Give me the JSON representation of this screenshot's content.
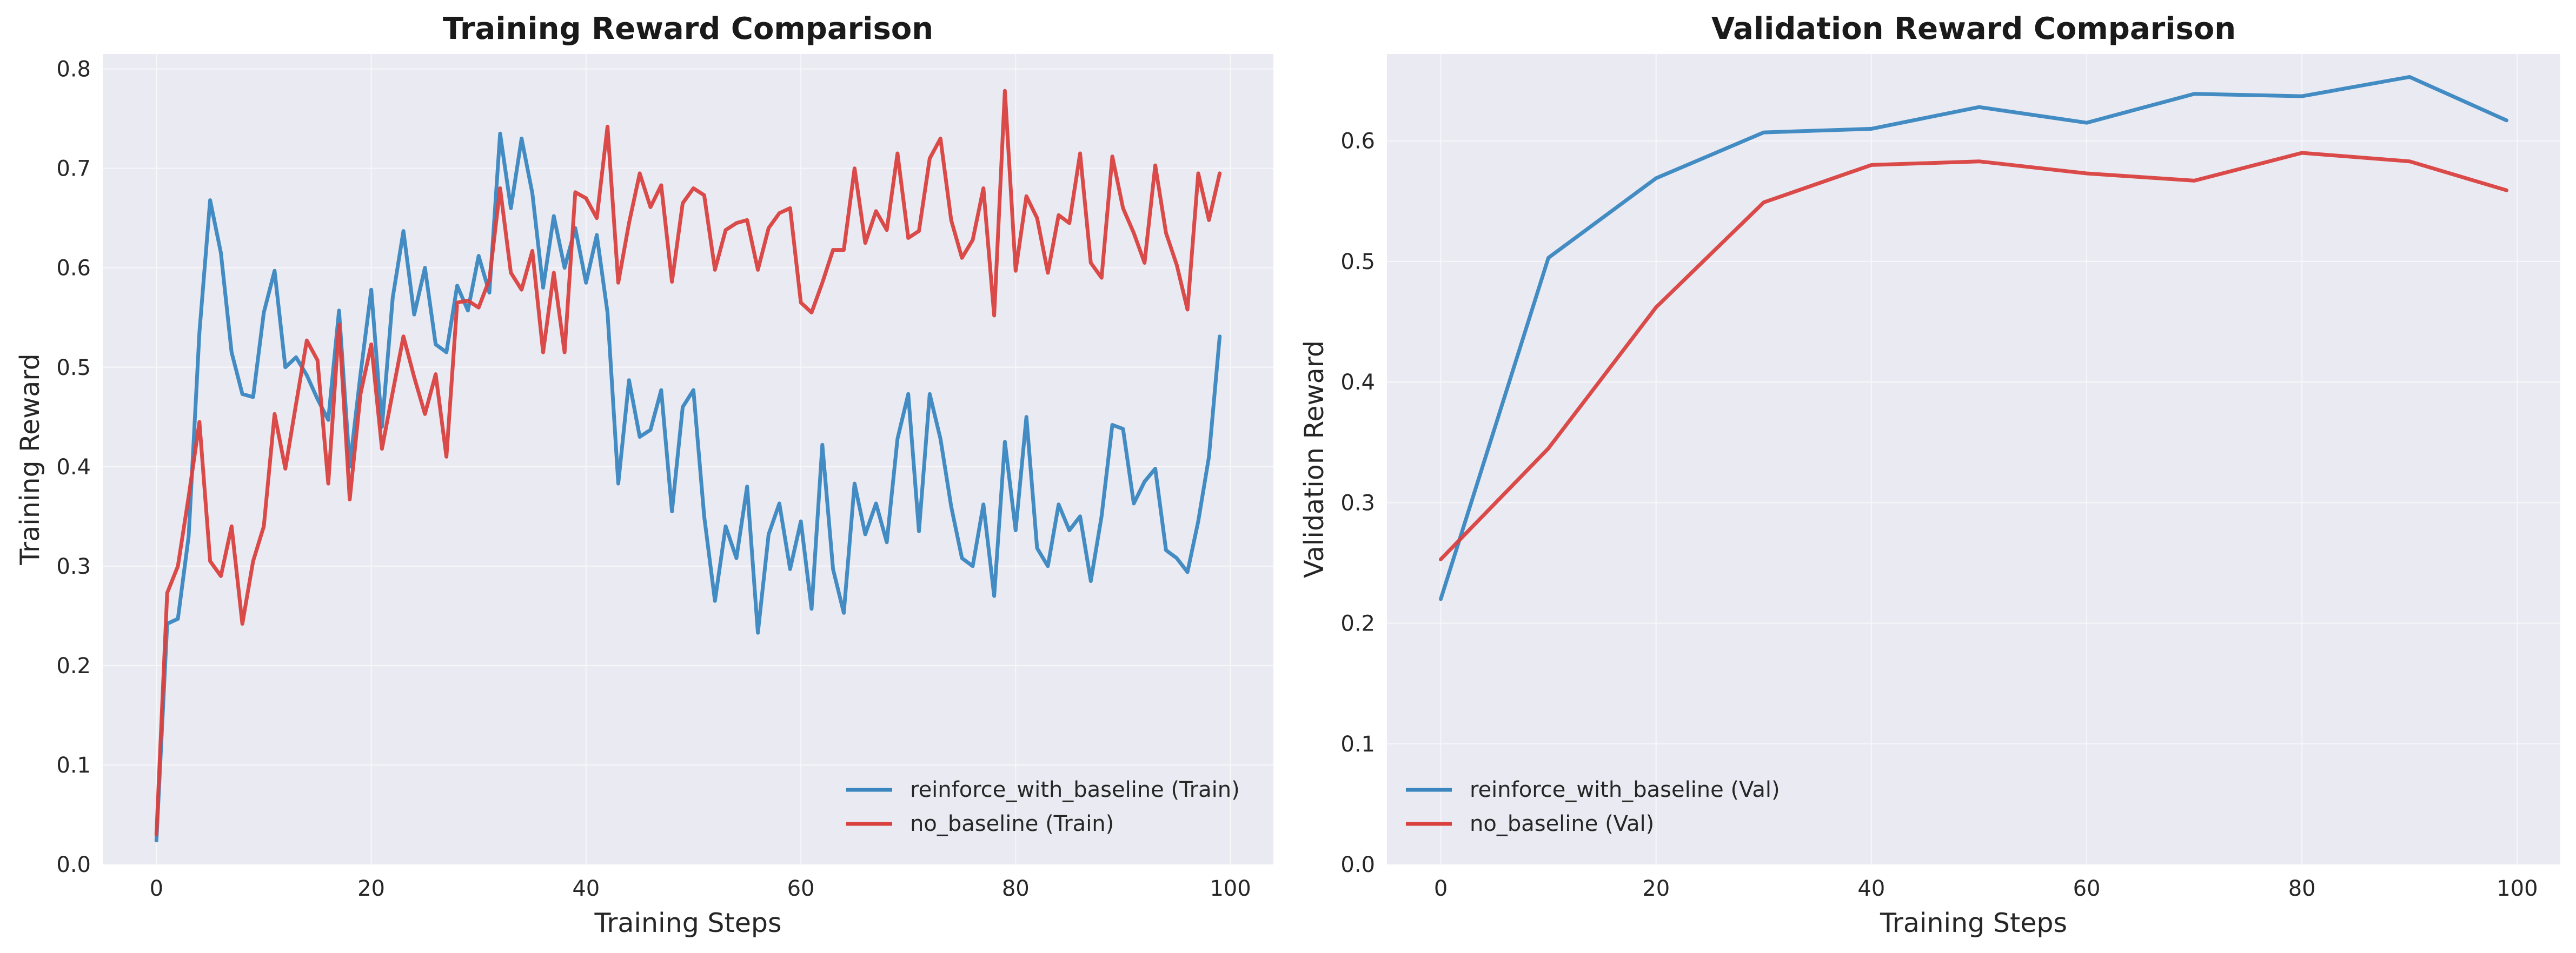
{
  "chart_data": [
    {
      "type": "line",
      "title": "Training Reward Comparison",
      "xlabel": "Training Steps",
      "ylabel": "Training Reward",
      "xlim": [
        -5,
        104
      ],
      "ylim": [
        0,
        0.815
      ],
      "xticks": [
        0,
        20,
        40,
        60,
        80,
        100
      ],
      "yticks": [
        0.0,
        0.1,
        0.2,
        0.3,
        0.4,
        0.5,
        0.6,
        0.7,
        0.8
      ],
      "grid": true,
      "legend_position": "lower-right",
      "series": [
        {
          "name": "reinforce_with_baseline (Train)",
          "color": "#3a87c0",
          "x": [
            0,
            1,
            2,
            3,
            4,
            5,
            6,
            7,
            8,
            9,
            10,
            11,
            12,
            13,
            14,
            15,
            16,
            17,
            18,
            19,
            20,
            21,
            22,
            23,
            24,
            25,
            26,
            27,
            28,
            29,
            30,
            31,
            32,
            33,
            34,
            35,
            36,
            37,
            38,
            39,
            40,
            41,
            42,
            43,
            44,
            45,
            46,
            47,
            48,
            49,
            50,
            51,
            52,
            53,
            54,
            55,
            56,
            57,
            58,
            59,
            60,
            61,
            62,
            63,
            64,
            65,
            66,
            67,
            68,
            69,
            70,
            71,
            72,
            73,
            74,
            75,
            76,
            77,
            78,
            79,
            80,
            81,
            82,
            83,
            84,
            85,
            86,
            87,
            88,
            89,
            90,
            91,
            92,
            93,
            94,
            95,
            96,
            97,
            98,
            99
          ],
          "y": [
            0.024,
            0.242,
            0.247,
            0.33,
            0.535,
            0.668,
            0.615,
            0.515,
            0.473,
            0.47,
            0.555,
            0.597,
            0.5,
            0.51,
            0.492,
            0.468,
            0.447,
            0.557,
            0.4,
            0.493,
            0.578,
            0.44,
            0.57,
            0.637,
            0.553,
            0.6,
            0.523,
            0.515,
            0.582,
            0.557,
            0.612,
            0.575,
            0.735,
            0.66,
            0.73,
            0.675,
            0.58,
            0.652,
            0.6,
            0.64,
            0.585,
            0.633,
            0.555,
            0.383,
            0.487,
            0.43,
            0.437,
            0.477,
            0.355,
            0.46,
            0.477,
            0.35,
            0.265,
            0.34,
            0.308,
            0.38,
            0.233,
            0.332,
            0.363,
            0.297,
            0.345,
            0.257,
            0.422,
            0.297,
            0.253,
            0.383,
            0.332,
            0.363,
            0.324,
            0.428,
            0.473,
            0.335,
            0.473,
            0.428,
            0.36,
            0.308,
            0.3,
            0.362,
            0.27,
            0.425,
            0.336,
            0.45,
            0.318,
            0.3,
            0.362,
            0.336,
            0.35,
            0.285,
            0.35,
            0.442,
            0.438,
            0.363,
            0.385,
            0.398,
            0.316,
            0.308,
            0.294,
            0.345,
            0.41,
            0.531
          ]
        },
        {
          "name": "no_baseline (Train)",
          "color": "#d9413f",
          "x": [
            0,
            1,
            2,
            3,
            4,
            5,
            6,
            7,
            8,
            9,
            10,
            11,
            12,
            13,
            14,
            15,
            16,
            17,
            18,
            19,
            20,
            21,
            22,
            23,
            24,
            25,
            26,
            27,
            28,
            29,
            30,
            31,
            32,
            33,
            34,
            35,
            36,
            37,
            38,
            39,
            40,
            41,
            42,
            43,
            44,
            45,
            46,
            47,
            48,
            49,
            50,
            51,
            52,
            53,
            54,
            55,
            56,
            57,
            58,
            59,
            60,
            61,
            62,
            63,
            64,
            65,
            66,
            67,
            68,
            69,
            70,
            71,
            72,
            73,
            74,
            75,
            76,
            77,
            78,
            79,
            80,
            81,
            82,
            83,
            84,
            85,
            86,
            87,
            88,
            89,
            90,
            91,
            92,
            93,
            94,
            95,
            96,
            97,
            98,
            99
          ],
          "y": [
            0.03,
            0.273,
            0.3,
            0.37,
            0.445,
            0.305,
            0.29,
            0.34,
            0.242,
            0.305,
            0.34,
            0.453,
            0.398,
            0.463,
            0.527,
            0.507,
            0.383,
            0.543,
            0.367,
            0.473,
            0.523,
            0.418,
            0.475,
            0.531,
            0.49,
            0.453,
            0.493,
            0.41,
            0.565,
            0.567,
            0.56,
            0.588,
            0.68,
            0.595,
            0.578,
            0.617,
            0.515,
            0.595,
            0.515,
            0.676,
            0.67,
            0.65,
            0.742,
            0.585,
            0.645,
            0.695,
            0.661,
            0.683,
            0.586,
            0.665,
            0.68,
            0.673,
            0.598,
            0.638,
            0.645,
            0.648,
            0.598,
            0.64,
            0.655,
            0.66,
            0.565,
            0.555,
            0.585,
            0.618,
            0.618,
            0.7,
            0.625,
            0.657,
            0.638,
            0.715,
            0.63,
            0.637,
            0.71,
            0.73,
            0.648,
            0.61,
            0.628,
            0.68,
            0.552,
            0.778,
            0.597,
            0.672,
            0.65,
            0.595,
            0.653,
            0.645,
            0.715,
            0.605,
            0.59,
            0.712,
            0.66,
            0.635,
            0.605,
            0.703,
            0.635,
            0.603,
            0.558,
            0.695,
            0.648,
            0.695
          ]
        }
      ]
    },
    {
      "type": "line",
      "title": "Validation Reward Comparison",
      "xlabel": "Training Steps",
      "ylabel": "Validation Reward",
      "xlim": [
        -5,
        104
      ],
      "ylim": [
        0,
        0.672
      ],
      "xticks": [
        0,
        20,
        40,
        60,
        80,
        100
      ],
      "yticks": [
        0.0,
        0.1,
        0.2,
        0.3,
        0.4,
        0.5,
        0.6
      ],
      "grid": true,
      "legend_position": "lower-left",
      "series": [
        {
          "name": "reinforce_with_baseline (Val)",
          "color": "#3a87c0",
          "x": [
            0,
            10,
            20,
            30,
            40,
            50,
            60,
            70,
            80,
            90,
            99
          ],
          "y": [
            0.22,
            0.503,
            0.569,
            0.607,
            0.61,
            0.628,
            0.615,
            0.639,
            0.637,
            0.653,
            0.617
          ]
        },
        {
          "name": "no_baseline (Val)",
          "color": "#d9413f",
          "x": [
            0,
            10,
            20,
            30,
            40,
            50,
            60,
            70,
            80,
            90,
            99
          ],
          "y": [
            0.253,
            0.345,
            0.462,
            0.549,
            0.58,
            0.583,
            0.573,
            0.567,
            0.59,
            0.583,
            0.559
          ]
        }
      ]
    }
  ]
}
